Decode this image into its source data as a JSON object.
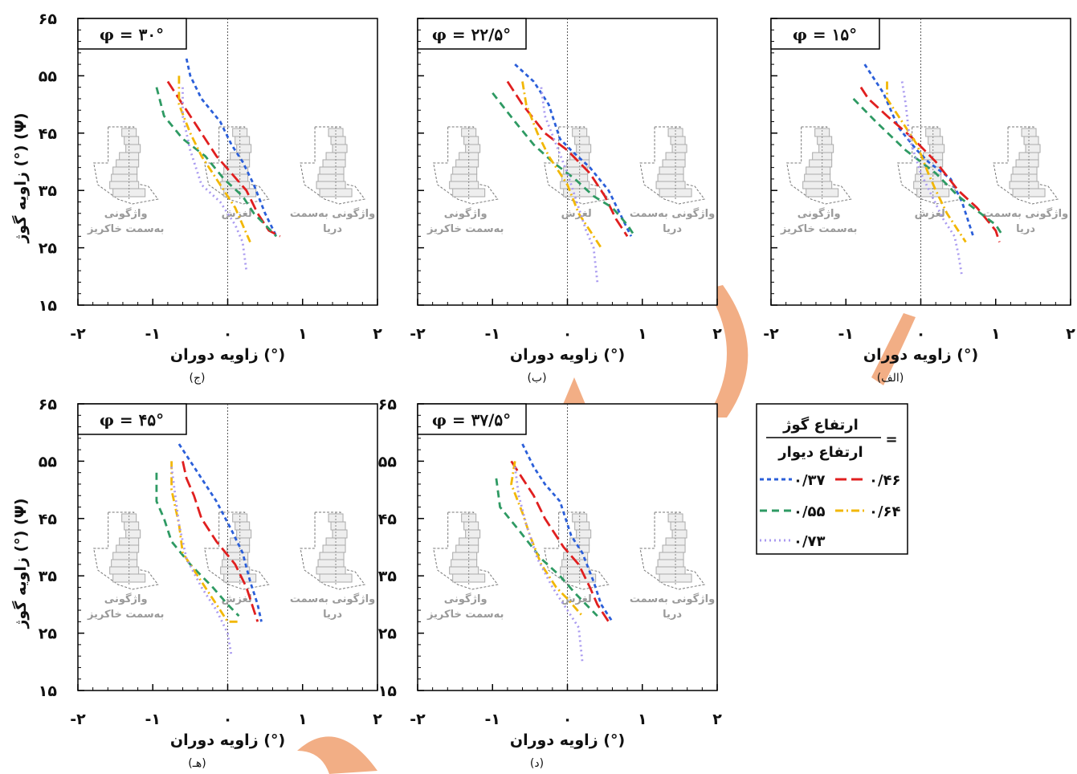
{
  "colors": {
    "r037": "#2b5fd9",
    "r046": "#e01f1f",
    "r055": "#2e9a63",
    "r064": "#f2b705",
    "r073": "#a99af0",
    "watermark": "#f0a070"
  },
  "legend": {
    "numerator": "ارتفاع گوژ",
    "denominator": "ارتفاع دیوار",
    "equals": "=",
    "entries": [
      "۰/۳۷",
      "۰/۴۶",
      "۰/۵۵",
      "۰/۶۴",
      "۰/۷۳"
    ]
  },
  "chart_data": [
    {
      "type": "line",
      "panel_label": "(الف)",
      "phi_label": "φ = ۱۵°",
      "xlabel": "زاویه دوران (°)",
      "ylabel": "زاویه گوژ (°) (Ψ)",
      "xlim": [
        -2,
        2
      ],
      "ylim": [
        15,
        65
      ],
      "xticks": [
        "-۲",
        "-۱",
        "۰",
        "۱",
        "۲"
      ],
      "yticks": [
        "۱۵",
        "۲۵",
        "۳۵",
        "۴۵",
        "۵۵",
        "۶۵"
      ],
      "mode_labels": [
        "واژگونی به‌سمت خاکریز",
        "لغزش",
        "واژگونی به‌سمت دریا"
      ],
      "series": [
        {
          "name": "۰/۳۷",
          "points": [
            [
              -0.75,
              57
            ],
            [
              -0.5,
              52
            ],
            [
              -0.3,
              46
            ],
            [
              -0.05,
              42
            ],
            [
              0.1,
              40
            ],
            [
              0.4,
              37
            ],
            [
              0.55,
              33
            ],
            [
              0.65,
              29
            ],
            [
              0.7,
              27
            ]
          ]
        },
        {
          "name": "۰/۴۶",
          "points": [
            [
              -0.8,
              53
            ],
            [
              -0.7,
              51
            ],
            [
              -0.45,
              48
            ],
            [
              -0.1,
              44
            ],
            [
              0.2,
              40
            ],
            [
              0.5,
              35
            ],
            [
              0.75,
              32
            ],
            [
              1.0,
              28
            ],
            [
              1.05,
              26
            ]
          ]
        },
        {
          "name": "۰/۵۵",
          "points": [
            [
              -0.9,
              51
            ],
            [
              -0.6,
              47
            ],
            [
              -0.2,
              42
            ],
            [
              0.2,
              38
            ],
            [
              0.5,
              34
            ],
            [
              0.8,
              31
            ],
            [
              1.0,
              29
            ],
            [
              1.1,
              27
            ]
          ]
        },
        {
          "name": "۰/۶۴",
          "points": [
            [
              -0.45,
              54
            ],
            [
              -0.45,
              51
            ],
            [
              -0.3,
              48
            ],
            [
              -0.05,
              43
            ],
            [
              0.1,
              38
            ],
            [
              0.2,
              35
            ],
            [
              0.35,
              31
            ],
            [
              0.5,
              28
            ],
            [
              0.6,
              26
            ]
          ]
        },
        {
          "name": "۰/۷۳",
          "points": [
            [
              -0.25,
              54
            ],
            [
              -0.2,
              50
            ],
            [
              -0.15,
              44
            ],
            [
              0,
              38
            ],
            [
              0.15,
              34
            ],
            [
              0.3,
              30
            ],
            [
              0.45,
              27
            ],
            [
              0.5,
              24
            ],
            [
              0.55,
              20
            ]
          ]
        }
      ]
    },
    {
      "type": "line",
      "panel_label": "(ب)",
      "phi_label": "φ = ۲۲/۵°",
      "xlabel": "زاویه دوران (°)",
      "ylabel": "زاویه گوژ (°) (Ψ)",
      "xlim": [
        -2,
        2
      ],
      "ylim": [
        15,
        65
      ],
      "xticks": [
        "-۲",
        "-۱",
        "۰",
        "۱",
        "۲"
      ],
      "yticks": [
        "۱۵",
        "۲۵",
        "۳۵",
        "۴۵",
        "۵۵",
        "۶۵"
      ],
      "mode_labels": [
        "واژگونی به‌سمت خاکریز",
        "لغزش",
        "واژگونی به‌سمت دریا"
      ],
      "series": [
        {
          "name": "۰/۳۷",
          "points": [
            [
              -0.7,
              57
            ],
            [
              -0.45,
              54
            ],
            [
              -0.25,
              50
            ],
            [
              -0.1,
              44
            ],
            [
              0.05,
              42
            ],
            [
              0.3,
              39
            ],
            [
              0.55,
              35
            ],
            [
              0.7,
              31
            ],
            [
              0.85,
              27
            ]
          ]
        },
        {
          "name": "۰/۴۶",
          "points": [
            [
              -0.8,
              54
            ],
            [
              -0.6,
              50
            ],
            [
              -0.3,
              45
            ],
            [
              0,
              42
            ],
            [
              0.3,
              38
            ],
            [
              0.5,
              34
            ],
            [
              0.65,
              30
            ],
            [
              0.8,
              27
            ]
          ]
        },
        {
          "name": "۰/۵۵",
          "points": [
            [
              -1.0,
              52
            ],
            [
              -0.7,
              47
            ],
            [
              -0.45,
              43
            ],
            [
              -0.2,
              40
            ],
            [
              0.1,
              37
            ],
            [
              0.35,
              34
            ],
            [
              0.6,
              32
            ],
            [
              0.8,
              29
            ],
            [
              0.9,
              27
            ]
          ]
        },
        {
          "name": "۰/۶۴",
          "points": [
            [
              -0.6,
              54
            ],
            [
              -0.55,
              50
            ],
            [
              -0.4,
              45
            ],
            [
              -0.25,
              41
            ],
            [
              0,
              36
            ],
            [
              0.15,
              31
            ],
            [
              0.3,
              28
            ],
            [
              0.45,
              25
            ]
          ]
        },
        {
          "name": "۰/۷۳",
          "points": [
            [
              -0.35,
              53
            ],
            [
              -0.3,
              48
            ],
            [
              -0.15,
              43
            ],
            [
              0,
              38
            ],
            [
              0.1,
              34
            ],
            [
              0.25,
              28
            ],
            [
              0.35,
              25
            ],
            [
              0.4,
              19
            ]
          ]
        }
      ]
    },
    {
      "type": "line",
      "panel_label": "(ج)",
      "phi_label": "φ = ۳۰°",
      "xlabel": "زاویه دوران (°)",
      "ylabel": "زاویه گوژ (°) (Ψ)",
      "xlim": [
        -2,
        2
      ],
      "ylim": [
        15,
        65
      ],
      "xticks": [
        "-۲",
        "-۱",
        "۰",
        "۱",
        "۲"
      ],
      "yticks": [
        "۱۵",
        "۲۵",
        "۳۵",
        "۴۵",
        "۵۵",
        "۶۵"
      ],
      "mode_labels": [
        "واژگونی به‌سمت خاکریز",
        "لغزش",
        "واژگونی به‌سمت دریا"
      ],
      "series": [
        {
          "name": "۰/۳۷",
          "points": [
            [
              -0.55,
              58
            ],
            [
              -0.5,
              55
            ],
            [
              -0.35,
              51
            ],
            [
              -0.1,
              47
            ],
            [
              0.05,
              43
            ],
            [
              0.2,
              40
            ],
            [
              0.35,
              36
            ],
            [
              0.5,
              31
            ],
            [
              0.65,
              27
            ]
          ]
        },
        {
          "name": "۰/۴۶",
          "points": [
            [
              -0.8,
              54
            ],
            [
              -0.6,
              50
            ],
            [
              -0.4,
              46
            ],
            [
              -0.15,
              41
            ],
            [
              0.05,
              38
            ],
            [
              0.25,
              35
            ],
            [
              0.4,
              31
            ],
            [
              0.55,
              28
            ],
            [
              0.7,
              27
            ]
          ]
        },
        {
          "name": "۰/۵۵",
          "points": [
            [
              -0.95,
              53
            ],
            [
              -0.85,
              48
            ],
            [
              -0.6,
              44
            ],
            [
              -0.3,
              41
            ],
            [
              -0.05,
              37
            ],
            [
              0.2,
              34
            ],
            [
              0.35,
              31
            ],
            [
              0.5,
              29
            ],
            [
              0.65,
              27
            ]
          ]
        },
        {
          "name": "۰/۶۴",
          "points": [
            [
              -0.65,
              55
            ],
            [
              -0.65,
              50
            ],
            [
              -0.5,
              45
            ],
            [
              -0.35,
              41
            ],
            [
              -0.2,
              38
            ],
            [
              -0.05,
              35
            ],
            [
              0.1,
              32
            ],
            [
              0.2,
              29
            ],
            [
              0.3,
              26
            ]
          ]
        },
        {
          "name": "۰/۷۳",
          "points": [
            [
              -0.6,
              53
            ],
            [
              -0.6,
              48
            ],
            [
              -0.5,
              42
            ],
            [
              -0.35,
              36
            ],
            [
              -0.1,
              33
            ],
            [
              0.1,
              29
            ],
            [
              0.2,
              26
            ],
            [
              0.25,
              21
            ]
          ]
        }
      ]
    },
    {
      "type": "line",
      "panel_label": "(د)",
      "phi_label": "φ = ۳۷/۵°",
      "xlabel": "زاویه دوران (°)",
      "ylabel": "زاویه گوژ (°) (Ψ)",
      "xlim": [
        -2,
        2
      ],
      "ylim": [
        15,
        65
      ],
      "xticks": [
        "-۲",
        "-۱",
        "۰",
        "۱",
        "۲"
      ],
      "yticks": [
        "۱۵",
        "۲۵",
        "۳۵",
        "۴۵",
        "۵۵",
        "۶۵"
      ],
      "mode_labels": [
        "واژگونی به‌سمت خاکریز",
        "لغزش",
        "واژگونی به‌سمت دریا"
      ],
      "series": [
        {
          "name": "۰/۳۷",
          "points": [
            [
              -0.6,
              58
            ],
            [
              -0.45,
              54
            ],
            [
              -0.3,
              51
            ],
            [
              -0.1,
              48
            ],
            [
              0.05,
              42
            ],
            [
              0.2,
              39
            ],
            [
              0.35,
              34
            ],
            [
              0.45,
              30
            ],
            [
              0.6,
              27
            ]
          ]
        },
        {
          "name": "۰/۴۶",
          "points": [
            [
              -0.75,
              55
            ],
            [
              -0.6,
              52
            ],
            [
              -0.45,
              49
            ],
            [
              -0.3,
              45
            ],
            [
              -0.05,
              40
            ],
            [
              0.15,
              37
            ],
            [
              0.3,
              33
            ],
            [
              0.4,
              30
            ],
            [
              0.55,
              27
            ]
          ]
        },
        {
          "name": "۰/۵۵",
          "points": [
            [
              -0.95,
              52
            ],
            [
              -0.9,
              47
            ],
            [
              -0.65,
              43
            ],
            [
              -0.35,
              38
            ],
            [
              -0.1,
              35
            ],
            [
              0.1,
              32
            ],
            [
              0.25,
              30
            ],
            [
              0.4,
              28
            ]
          ]
        },
        {
          "name": "۰/۶۴",
          "points": [
            [
              -0.7,
              55
            ],
            [
              -0.75,
              51
            ],
            [
              -0.6,
              46
            ],
            [
              -0.5,
              42
            ],
            [
              -0.35,
              37
            ],
            [
              -0.15,
              33
            ],
            [
              0,
              31
            ],
            [
              0.2,
              28
            ]
          ]
        },
        {
          "name": "۰/۷۳",
          "points": [
            [
              -0.7,
              54
            ],
            [
              -0.65,
              49
            ],
            [
              -0.55,
              44
            ],
            [
              -0.4,
              38
            ],
            [
              -0.2,
              33
            ],
            [
              0,
              29
            ],
            [
              0.15,
              26
            ],
            [
              0.2,
              20
            ]
          ]
        }
      ]
    },
    {
      "type": "line",
      "panel_label": "(هـ)",
      "phi_label": "φ = ۴۵°",
      "xlabel": "زاویه دوران (°)",
      "ylabel": "زاویه گوژ (°) (Ψ)",
      "xlim": [
        -2,
        2
      ],
      "ylim": [
        15,
        65
      ],
      "xticks": [
        "-۲",
        "-۱",
        "۰",
        "۱",
        "۲"
      ],
      "yticks": [
        "۱۵",
        "۲۵",
        "۳۵",
        "۴۵",
        "۵۵",
        "۶۵"
      ],
      "mode_labels": [
        "واژگونی به‌سمت خاکریز",
        "لغزش",
        "واژگونی به‌سمت دریا"
      ],
      "series": [
        {
          "name": "۰/۳۷",
          "points": [
            [
              -0.65,
              58
            ],
            [
              -0.5,
              55
            ],
            [
              -0.35,
              52
            ],
            [
              -0.15,
              48
            ],
            [
              0.05,
              43
            ],
            [
              0.2,
              39
            ],
            [
              0.3,
              34
            ],
            [
              0.4,
              30
            ],
            [
              0.45,
              27
            ]
          ]
        },
        {
          "name": "۰/۴۶",
          "points": [
            [
              -0.6,
              55
            ],
            [
              -0.55,
              52
            ],
            [
              -0.45,
              49
            ],
            [
              -0.35,
              45
            ],
            [
              -0.15,
              41
            ],
            [
              0.1,
              37
            ],
            [
              0.25,
              33
            ],
            [
              0.35,
              29
            ],
            [
              0.4,
              27
            ]
          ]
        },
        {
          "name": "۰/۵۵",
          "points": [
            [
              -0.95,
              53
            ],
            [
              -0.95,
              48
            ],
            [
              -0.85,
              45
            ],
            [
              -0.75,
              41
            ],
            [
              -0.5,
              37
            ],
            [
              -0.2,
              33
            ],
            [
              0,
              30
            ],
            [
              0.15,
              28
            ]
          ]
        },
        {
          "name": "۰/۶۴",
          "points": [
            [
              -0.75,
              55
            ],
            [
              -0.75,
              50
            ],
            [
              -0.65,
              44
            ],
            [
              -0.6,
              39
            ],
            [
              -0.45,
              36
            ],
            [
              -0.25,
              32
            ],
            [
              -0.1,
              29
            ],
            [
              0,
              27
            ],
            [
              0.15,
              27
            ]
          ]
        },
        {
          "name": "۰/۷۳",
          "points": [
            [
              -0.75,
              54
            ],
            [
              -0.7,
              49
            ],
            [
              -0.65,
              44
            ],
            [
              -0.55,
              38
            ],
            [
              -0.35,
              33
            ],
            [
              -0.15,
              29
            ],
            [
              0,
              25
            ],
            [
              0.05,
              21
            ]
          ]
        }
      ]
    }
  ]
}
